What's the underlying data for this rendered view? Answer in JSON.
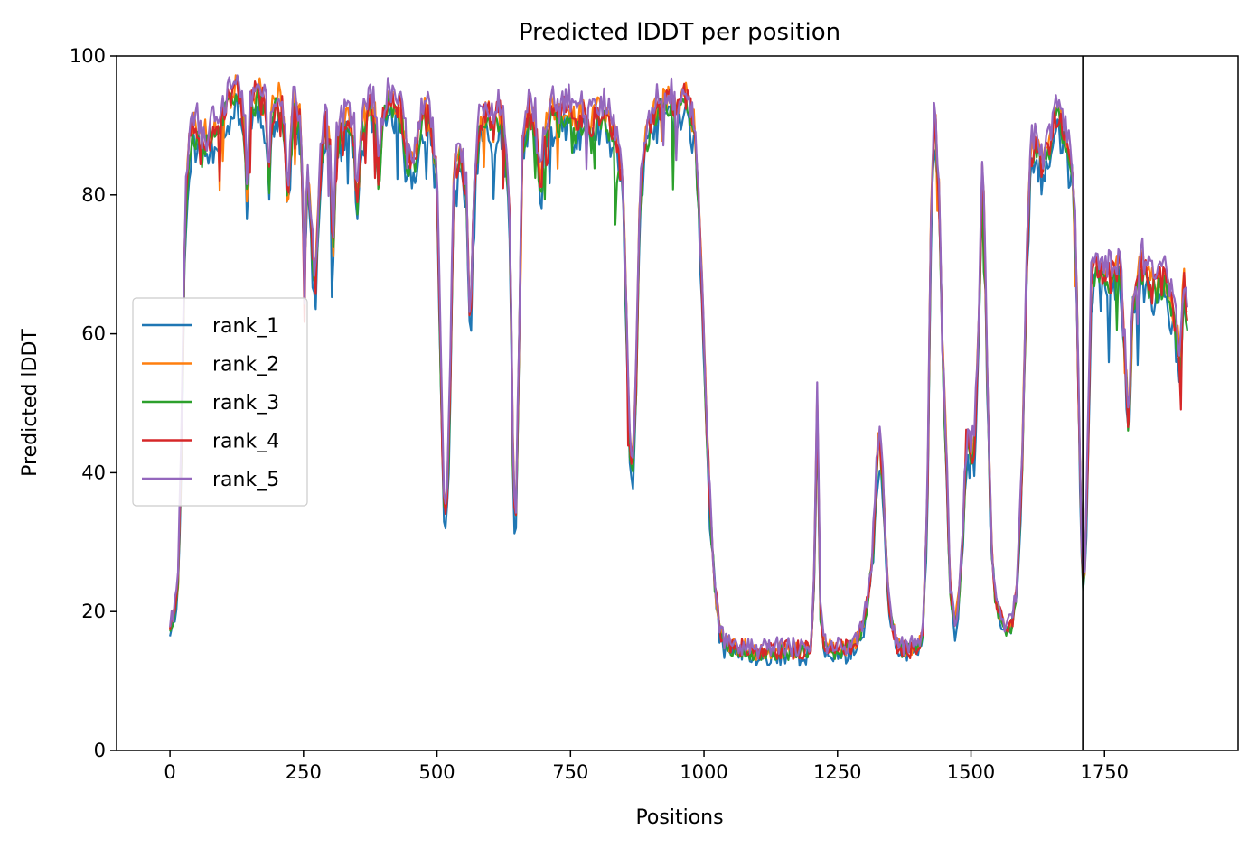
{
  "chart_data": {
    "type": "line",
    "title": "Predicted lDDT per position",
    "xlabel": "Positions",
    "ylabel": "Predicted lDDT",
    "xlim": [
      -100,
      2000
    ],
    "ylim": [
      0,
      100
    ],
    "xticks": [
      0,
      250,
      500,
      750,
      1000,
      1250,
      1500,
      1750
    ],
    "yticks": [
      0,
      20,
      40,
      60,
      80,
      100
    ],
    "grid": false,
    "legend_position": "center-left",
    "vline": {
      "x": 1710,
      "color": "#000000"
    },
    "base_profile": [
      [
        0,
        18
      ],
      [
        8,
        20
      ],
      [
        15,
        24
      ],
      [
        22,
        45
      ],
      [
        28,
        76
      ],
      [
        35,
        86
      ],
      [
        42,
        90
      ],
      [
        55,
        89
      ],
      [
        70,
        88
      ],
      [
        85,
        90
      ],
      [
        100,
        92
      ],
      [
        115,
        94
      ],
      [
        130,
        95
      ],
      [
        140,
        90
      ],
      [
        145,
        78
      ],
      [
        150,
        93
      ],
      [
        165,
        95
      ],
      [
        180,
        92
      ],
      [
        185,
        80
      ],
      [
        190,
        92
      ],
      [
        205,
        94
      ],
      [
        215,
        90
      ],
      [
        220,
        78
      ],
      [
        230,
        93
      ],
      [
        245,
        90
      ],
      [
        252,
        70
      ],
      [
        258,
        84
      ],
      [
        265,
        74
      ],
      [
        272,
        66
      ],
      [
        280,
        82
      ],
      [
        290,
        90
      ],
      [
        300,
        87
      ],
      [
        305,
        70
      ],
      [
        312,
        88
      ],
      [
        325,
        90
      ],
      [
        335,
        92
      ],
      [
        345,
        88
      ],
      [
        350,
        78
      ],
      [
        360,
        90
      ],
      [
        375,
        93
      ],
      [
        385,
        92
      ],
      [
        390,
        82
      ],
      [
        400,
        92
      ],
      [
        412,
        94
      ],
      [
        425,
        93
      ],
      [
        435,
        91
      ],
      [
        445,
        85
      ],
      [
        455,
        84
      ],
      [
        465,
        88
      ],
      [
        475,
        92
      ],
      [
        490,
        90
      ],
      [
        500,
        82
      ],
      [
        506,
        60
      ],
      [
        512,
        36
      ],
      [
        518,
        34
      ],
      [
        524,
        50
      ],
      [
        532,
        84
      ],
      [
        545,
        86
      ],
      [
        555,
        80
      ],
      [
        562,
        60
      ],
      [
        570,
        82
      ],
      [
        580,
        90
      ],
      [
        592,
        92
      ],
      [
        605,
        90
      ],
      [
        615,
        92
      ],
      [
        625,
        90
      ],
      [
        635,
        80
      ],
      [
        640,
        60
      ],
      [
        643,
        36
      ],
      [
        648,
        34
      ],
      [
        653,
        55
      ],
      [
        660,
        88
      ],
      [
        672,
        92
      ],
      [
        685,
        90
      ],
      [
        695,
        80
      ],
      [
        700,
        88
      ],
      [
        715,
        92
      ],
      [
        730,
        91
      ],
      [
        745,
        93
      ],
      [
        760,
        90
      ],
      [
        775,
        92
      ],
      [
        790,
        90
      ],
      [
        805,
        92
      ],
      [
        820,
        91
      ],
      [
        835,
        88
      ],
      [
        848,
        82
      ],
      [
        855,
        62
      ],
      [
        860,
        46
      ],
      [
        866,
        40
      ],
      [
        872,
        50
      ],
      [
        880,
        80
      ],
      [
        890,
        88
      ],
      [
        905,
        92
      ],
      [
        920,
        93
      ],
      [
        935,
        94
      ],
      [
        950,
        92
      ],
      [
        965,
        94
      ],
      [
        975,
        92
      ],
      [
        985,
        88
      ],
      [
        992,
        74
      ],
      [
        998,
        64
      ],
      [
        1005,
        46
      ],
      [
        1012,
        34
      ],
      [
        1020,
        24
      ],
      [
        1028,
        18
      ],
      [
        1040,
        15
      ],
      [
        1060,
        15
      ],
      [
        1080,
        14.5
      ],
      [
        1100,
        14
      ],
      [
        1130,
        14.5
      ],
      [
        1160,
        14.5
      ],
      [
        1190,
        14.5
      ],
      [
        1200,
        15
      ],
      [
        1205,
        20
      ],
      [
        1212,
        50
      ],
      [
        1218,
        20
      ],
      [
        1225,
        15
      ],
      [
        1250,
        14.5
      ],
      [
        1280,
        15
      ],
      [
        1295,
        17
      ],
      [
        1305,
        21
      ],
      [
        1315,
        27
      ],
      [
        1322,
        38
      ],
      [
        1328,
        46
      ],
      [
        1335,
        38
      ],
      [
        1345,
        22
      ],
      [
        1360,
        15
      ],
      [
        1380,
        14.5
      ],
      [
        1400,
        15
      ],
      [
        1410,
        17
      ],
      [
        1418,
        35
      ],
      [
        1425,
        75
      ],
      [
        1432,
        92
      ],
      [
        1440,
        80
      ],
      [
        1448,
        55
      ],
      [
        1455,
        40
      ],
      [
        1460,
        24
      ],
      [
        1470,
        18
      ],
      [
        1478,
        22
      ],
      [
        1485,
        32
      ],
      [
        1492,
        46
      ],
      [
        1500,
        42
      ],
      [
        1507,
        44
      ],
      [
        1515,
        64
      ],
      [
        1522,
        86
      ],
      [
        1530,
        55
      ],
      [
        1538,
        30
      ],
      [
        1545,
        22
      ],
      [
        1560,
        18
      ],
      [
        1575,
        18
      ],
      [
        1585,
        22
      ],
      [
        1595,
        40
      ],
      [
        1605,
        72
      ],
      [
        1612,
        86
      ],
      [
        1622,
        88
      ],
      [
        1632,
        84
      ],
      [
        1642,
        86
      ],
      [
        1652,
        90
      ],
      [
        1662,
        92
      ],
      [
        1672,
        90
      ],
      [
        1682,
        87
      ],
      [
        1690,
        84
      ],
      [
        1697,
        70
      ],
      [
        1703,
        45
      ],
      [
        1708,
        25
      ],
      [
        1712,
        24
      ],
      [
        1718,
        40
      ],
      [
        1725,
        68
      ],
      [
        1740,
        70
      ],
      [
        1760,
        68
      ],
      [
        1780,
        70
      ],
      [
        1790,
        55
      ],
      [
        1795,
        45
      ],
      [
        1802,
        65
      ],
      [
        1820,
        70
      ],
      [
        1840,
        67
      ],
      [
        1860,
        68
      ],
      [
        1875,
        65
      ],
      [
        1885,
        60
      ],
      [
        1892,
        55
      ],
      [
        1898,
        68
      ],
      [
        1905,
        62
      ]
    ],
    "series": [
      {
        "name": "rank_1",
        "color": "#1f77b4",
        "offset": -2.5,
        "noise": 2.6,
        "seed": 11
      },
      {
        "name": "rank_2",
        "color": "#ff7f0e",
        "offset": 0.5,
        "noise": 2.2,
        "seed": 23
      },
      {
        "name": "rank_3",
        "color": "#2ca02c",
        "offset": -1.0,
        "noise": 2.0,
        "seed": 37
      },
      {
        "name": "rank_4",
        "color": "#d62728",
        "offset": 0.0,
        "noise": 2.3,
        "seed": 51
      },
      {
        "name": "rank_5",
        "color": "#9467bd",
        "offset": 1.5,
        "noise": 2.4,
        "seed": 73
      }
    ]
  }
}
